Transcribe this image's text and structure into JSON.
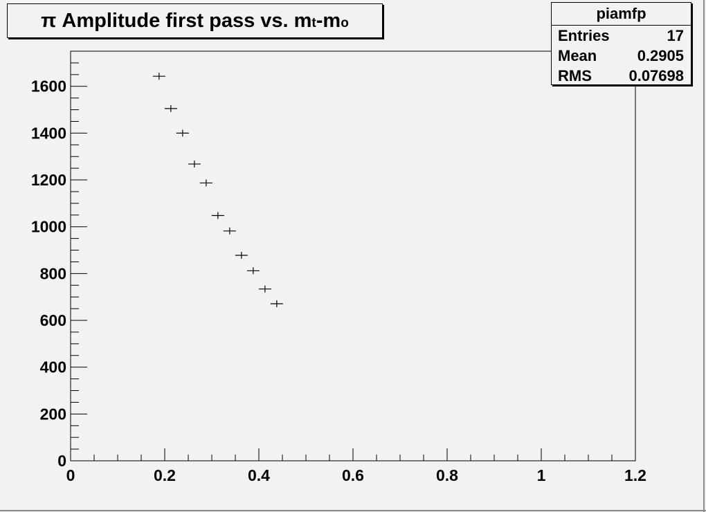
{
  "title": {
    "prefix": "π Amplitude first pass vs. m",
    "sub1": "t",
    "mid": "-m",
    "sub2": "o"
  },
  "stats": {
    "name": "piamfp",
    "rows": [
      {
        "label": "Entries",
        "value": "17"
      },
      {
        "label": "Mean",
        "value": "0.2905"
      },
      {
        "label": "RMS",
        "value": "0.07698"
      }
    ]
  },
  "chart_data": {
    "type": "scatter",
    "title": "π Amplitude first pass vs. m_t-m_o",
    "xlabel": "",
    "ylabel": "",
    "xlim": [
      0,
      1.2
    ],
    "ylim": [
      0,
      1750
    ],
    "grid": false,
    "x_ticks": [
      "0",
      "0.2",
      "0.4",
      "0.6",
      "0.8",
      "1",
      "1.2"
    ],
    "y_ticks": [
      "0",
      "200",
      "400",
      "600",
      "800",
      "1000",
      "1200",
      "1400",
      "1600"
    ],
    "points": [
      {
        "x": 0.188,
        "y": 1643
      },
      {
        "x": 0.213,
        "y": 1505
      },
      {
        "x": 0.238,
        "y": 1400
      },
      {
        "x": 0.263,
        "y": 1268
      },
      {
        "x": 0.288,
        "y": 1187
      },
      {
        "x": 0.313,
        "y": 1048
      },
      {
        "x": 0.338,
        "y": 982
      },
      {
        "x": 0.363,
        "y": 878
      },
      {
        "x": 0.388,
        "y": 812
      },
      {
        "x": 0.413,
        "y": 734
      },
      {
        "x": 0.438,
        "y": 671
      }
    ]
  }
}
